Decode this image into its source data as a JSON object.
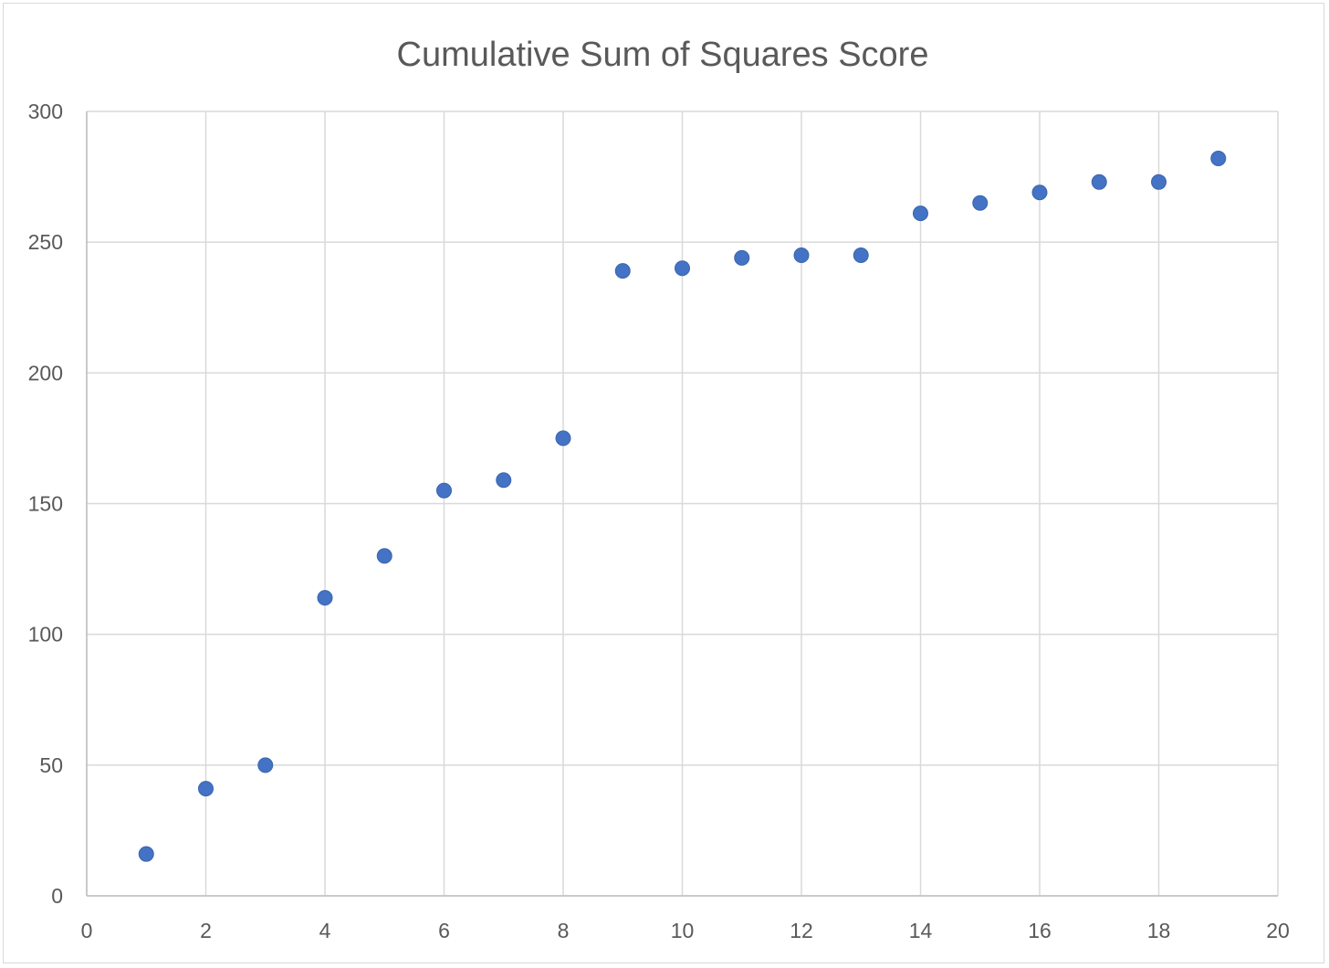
{
  "chart_data": {
    "type": "scatter",
    "title": "Cumulative Sum of Squares Score",
    "xlabel": "",
    "ylabel": "",
    "xlim": [
      0,
      20
    ],
    "ylim": [
      0,
      300
    ],
    "x_ticks": [
      0,
      2,
      4,
      6,
      8,
      10,
      12,
      14,
      16,
      18,
      20
    ],
    "y_ticks": [
      0,
      50,
      100,
      150,
      200,
      250,
      300
    ],
    "grid": true,
    "legend": "none",
    "marker_color": "#4472C4",
    "series": [
      {
        "x": [
          1,
          2,
          3,
          4,
          5,
          6,
          7,
          8,
          9,
          10,
          11,
          12,
          13,
          14,
          15,
          16,
          17,
          18,
          19
        ],
        "y": [
          16,
          41,
          50,
          114,
          130,
          155,
          159,
          175,
          239,
          240,
          244,
          245,
          245,
          261,
          265,
          269,
          273,
          273,
          282
        ]
      }
    ]
  }
}
